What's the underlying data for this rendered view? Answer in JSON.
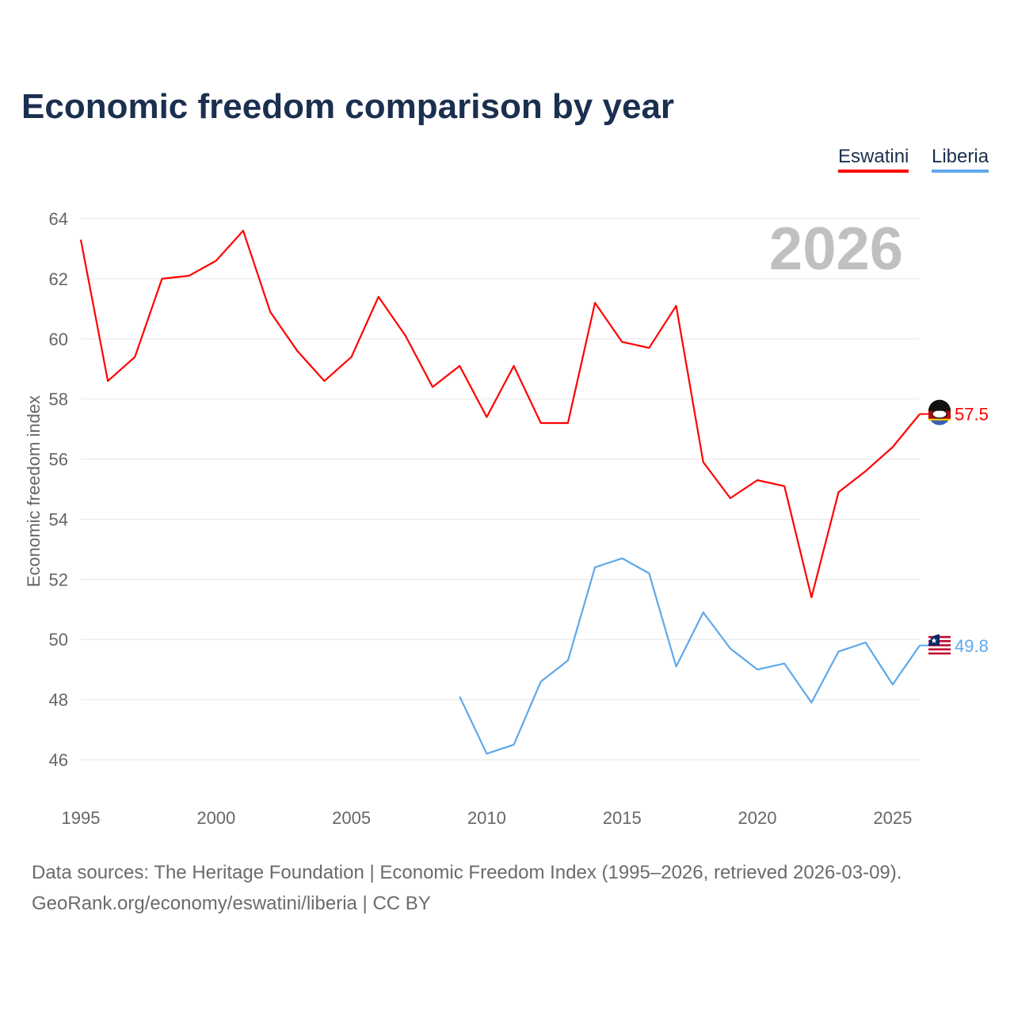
{
  "chart_data": {
    "type": "line",
    "title": "Economic freedom comparison by year",
    "ylabel": "Economic freedom index",
    "xlabel": "",
    "xlim": [
      1995,
      2026
    ],
    "ylim": [
      46,
      64
    ],
    "yticks": [
      46,
      48,
      50,
      52,
      54,
      56,
      58,
      60,
      62,
      64
    ],
    "xticks": [
      1995,
      2000,
      2005,
      2010,
      2015,
      2020,
      2025
    ],
    "grid": true,
    "year_label": "2026",
    "legend_position": "top-right",
    "series": [
      {
        "name": "Eswatini",
        "color": "#ff0000",
        "end_label": "57.5",
        "x": [
          1995,
          1996,
          1997,
          1998,
          1999,
          2000,
          2001,
          2002,
          2003,
          2004,
          2005,
          2006,
          2007,
          2008,
          2009,
          2010,
          2011,
          2012,
          2013,
          2014,
          2015,
          2016,
          2017,
          2018,
          2019,
          2020,
          2021,
          2022,
          2023,
          2024,
          2025,
          2026
        ],
        "values": [
          63.3,
          58.6,
          59.4,
          62.0,
          62.1,
          62.6,
          63.6,
          60.9,
          59.6,
          58.6,
          59.4,
          61.4,
          60.1,
          58.4,
          59.1,
          57.4,
          59.1,
          57.2,
          57.2,
          61.2,
          59.9,
          59.7,
          61.1,
          55.9,
          54.7,
          55.3,
          55.1,
          51.4,
          54.9,
          55.6,
          56.4,
          57.5
        ]
      },
      {
        "name": "Liberia",
        "color": "#5ea8ea",
        "end_label": "49.8",
        "x": [
          2009,
          2010,
          2011,
          2012,
          2013,
          2014,
          2015,
          2016,
          2017,
          2018,
          2019,
          2020,
          2021,
          2022,
          2023,
          2024,
          2025,
          2026
        ],
        "values": [
          48.1,
          46.2,
          46.5,
          48.6,
          49.3,
          52.4,
          52.7,
          52.2,
          49.1,
          50.9,
          49.7,
          49.0,
          49.2,
          47.9,
          49.6,
          49.9,
          48.5,
          49.8
        ]
      }
    ]
  },
  "footer": {
    "line1": "Data sources: The Heritage Foundation | Economic Freedom Index (1995–2026, retrieved 2026-03-09).",
    "line2": "GeoRank.org/economy/eswatini/liberia | CC BY"
  }
}
